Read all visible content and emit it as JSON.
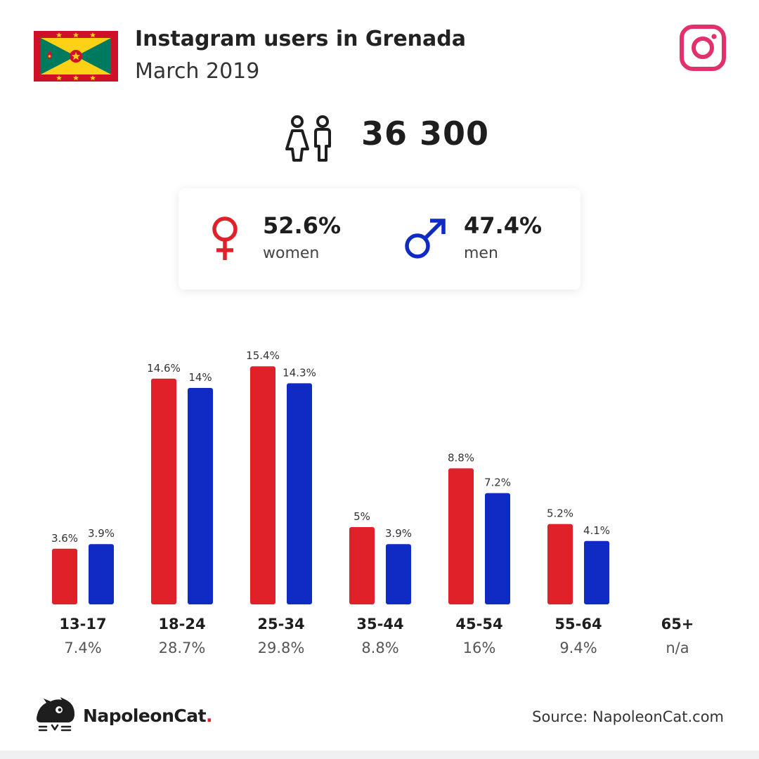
{
  "header": {
    "title": "Instagram users in Grenada",
    "subtitle": "March 2019"
  },
  "total_users": "36 300",
  "gender": {
    "women_pct": "52.6%",
    "women_label": "women",
    "men_pct": "47.4%",
    "men_label": "men"
  },
  "colors": {
    "women": "#e0212a",
    "men": "#0f2bc4",
    "instagram": "#e1306c"
  },
  "icons": [
    "grenada-flag",
    "instagram-icon",
    "people-icon",
    "female-symbol-icon",
    "male-symbol-icon",
    "napoleoncat-logo-icon"
  ],
  "chart_data": {
    "type": "bar",
    "categories": [
      "13-17",
      "18-24",
      "25-34",
      "35-44",
      "45-54",
      "55-64",
      "65+"
    ],
    "category_totals": [
      "7.4%",
      "28.7%",
      "29.8%",
      "8.8%",
      "16%",
      "9.4%",
      "n/a"
    ],
    "series": [
      {
        "name": "women",
        "values": [
          3.6,
          14.6,
          15.4,
          5,
          8.8,
          5.2,
          null
        ],
        "labels": [
          "3.6%",
          "14.6%",
          "15.4%",
          "5%",
          "8.8%",
          "5.2%",
          ""
        ]
      },
      {
        "name": "men",
        "values": [
          3.9,
          14,
          14.3,
          3.9,
          7.2,
          4.1,
          null
        ],
        "labels": [
          "3.9%",
          "14%",
          "14.3%",
          "3.9%",
          "7.2%",
          "4.1%",
          ""
        ]
      }
    ],
    "ylim": [
      0,
      16
    ]
  },
  "footer": {
    "brand": "NapoleonCat",
    "brand_dot": ".",
    "source": "Source: NapoleonCat.com"
  }
}
